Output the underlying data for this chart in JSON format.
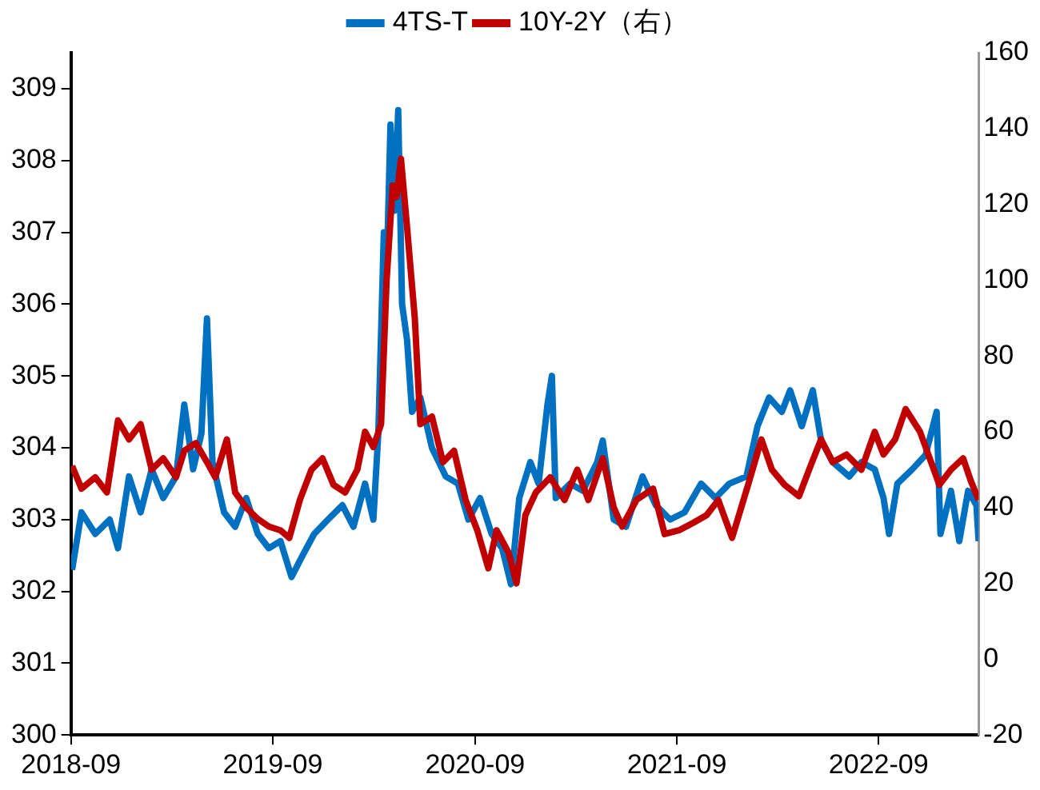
{
  "chart_data": {
    "type": "line",
    "x": [
      "2018-09-03",
      "2018-09-20",
      "2018-10-15",
      "2018-11-10",
      "2018-11-25",
      "2018-12-15",
      "2019-01-05",
      "2019-01-25",
      "2019-02-15",
      "2019-03-10",
      "2019-03-25",
      "2019-04-10",
      "2019-04-25",
      "2019-05-05",
      "2019-05-15",
      "2019-06-05",
      "2019-06-25",
      "2019-07-15",
      "2019-08-05",
      "2019-08-25",
      "2019-09-15",
      "2019-10-05",
      "2019-10-25",
      "2019-11-15",
      "2019-12-10",
      "2020-01-05",
      "2020-01-25",
      "2020-02-15",
      "2020-03-01",
      "2020-03-10",
      "2020-03-20",
      "2020-03-25",
      "2020-04-01",
      "2020-04-08",
      "2020-04-15",
      "2020-04-22",
      "2020-05-01",
      "2020-05-10",
      "2020-05-25",
      "2020-06-15",
      "2020-07-10",
      "2020-08-01",
      "2020-08-20",
      "2020-09-10",
      "2020-10-01",
      "2020-10-20",
      "2020-11-05",
      "2020-11-20",
      "2020-12-10",
      "2020-12-25",
      "2021-01-10",
      "2021-01-18",
      "2021-01-25",
      "2021-02-20",
      "2021-03-15",
      "2021-04-10",
      "2021-04-20",
      "2021-05-10",
      "2021-06-01",
      "2021-07-01",
      "2021-07-25",
      "2021-08-20",
      "2021-09-15",
      "2021-10-15",
      "2021-11-10",
      "2021-12-05",
      "2022-01-05",
      "2022-01-25",
      "2022-02-15",
      "2022-03-10",
      "2022-03-25",
      "2022-04-15",
      "2022-05-05",
      "2022-05-20",
      "2022-06-10",
      "2022-07-10",
      "2022-08-01",
      "2022-08-25",
      "2022-09-10",
      "2022-09-20",
      "2022-10-05",
      "2022-11-01",
      "2022-11-25",
      "2022-12-15",
      "2022-12-22",
      "2023-01-10",
      "2023-01-25",
      "2023-02-10",
      "2023-02-25",
      "2023-03-01"
    ],
    "series": [
      {
        "name": "4TS-T",
        "color": "#0070c0",
        "values": [
          302.3,
          303.1,
          302.8,
          303.0,
          302.6,
          303.6,
          303.1,
          303.7,
          303.3,
          303.6,
          304.6,
          303.7,
          304.2,
          305.8,
          303.8,
          303.1,
          302.9,
          303.3,
          302.8,
          302.6,
          302.7,
          302.2,
          302.5,
          302.8,
          303.0,
          303.2,
          302.9,
          303.5,
          303.0,
          304.2,
          307.0,
          306.4,
          308.5,
          307.3,
          308.7,
          306.0,
          305.5,
          304.5,
          304.7,
          304.0,
          303.6,
          303.5,
          303.0,
          303.3,
          302.8,
          302.6,
          302.1,
          303.3,
          303.8,
          303.5,
          304.6,
          305.0,
          303.3,
          303.5,
          303.4,
          303.8,
          304.1,
          303.0,
          302.9,
          303.6,
          303.2,
          303.0,
          303.1,
          303.5,
          303.3,
          303.5,
          303.6,
          304.3,
          304.7,
          304.5,
          304.8,
          304.3,
          304.8,
          304.1,
          303.8,
          303.6,
          303.8,
          303.7,
          303.3,
          302.8,
          303.5,
          303.7,
          303.9,
          304.5,
          302.8,
          303.4,
          302.7,
          303.4,
          303.2,
          302.7
        ]
      },
      {
        "name": "10Y-2Y（右）",
        "color": "#c00000",
        "axis": "y2",
        "x": [
          "2018-09-03",
          "2018-09-20",
          "2018-10-15",
          "2018-11-05",
          "2018-11-25",
          "2018-12-15",
          "2019-01-05",
          "2019-01-25",
          "2019-02-15",
          "2019-03-10",
          "2019-03-25",
          "2019-04-15",
          "2019-05-05",
          "2019-05-20",
          "2019-06-10",
          "2019-06-25",
          "2019-07-15",
          "2019-08-05",
          "2019-08-25",
          "2019-09-15",
          "2019-10-01",
          "2019-10-20",
          "2019-11-10",
          "2019-11-30",
          "2019-12-20",
          "2020-01-10",
          "2020-02-01",
          "2020-02-15",
          "2020-03-01",
          "2020-03-15",
          "2020-03-25",
          "2020-04-05",
          "2020-04-12",
          "2020-04-20",
          "2020-05-01",
          "2020-05-15",
          "2020-05-25",
          "2020-06-15",
          "2020-07-05",
          "2020-07-25",
          "2020-08-15",
          "2020-09-05",
          "2020-09-25",
          "2020-10-10",
          "2020-11-01",
          "2020-11-15",
          "2020-12-01",
          "2020-12-20",
          "2021-01-15",
          "2021-02-10",
          "2021-03-05",
          "2021-03-25",
          "2021-04-20",
          "2021-05-10",
          "2021-05-25",
          "2021-06-20",
          "2021-07-20",
          "2021-08-10",
          "2021-09-05",
          "2021-10-01",
          "2021-10-25",
          "2021-11-15",
          "2021-12-10",
          "2022-01-10",
          "2022-02-01",
          "2022-02-20",
          "2022-03-15",
          "2022-04-10",
          "2022-05-01",
          "2022-05-20",
          "2022-06-10",
          "2022-07-05",
          "2022-08-01",
          "2022-08-25",
          "2022-09-10",
          "2022-10-01",
          "2022-10-20",
          "2022-11-15",
          "2022-12-05",
          "2022-12-20",
          "2023-01-10",
          "2023-02-01",
          "2023-02-15",
          "2023-03-01"
        ],
        "values": [
          51,
          45,
          48,
          44,
          63,
          58,
          62,
          50,
          53,
          48,
          55,
          57,
          52,
          48,
          58,
          44,
          40,
          37,
          35,
          34,
          32,
          42,
          50,
          53,
          46,
          44,
          50,
          60,
          56,
          62,
          100,
          125,
          122,
          132,
          114,
          90,
          62,
          64,
          52,
          55,
          42,
          34,
          24,
          34,
          28,
          20,
          38,
          44,
          48,
          42,
          50,
          42,
          53,
          40,
          35,
          42,
          45,
          33,
          34,
          36,
          38,
          42,
          32,
          47,
          58,
          50,
          46,
          43,
          51,
          58,
          52,
          54,
          50,
          60,
          54,
          58,
          66,
          60,
          52,
          46,
          50,
          53,
          47,
          42
        ]
      }
    ],
    "xlim": [
      "2018-09",
      "2023-03"
    ],
    "xticks": [
      "2018-09",
      "2019-09",
      "2020-09",
      "2021-09",
      "2022-09"
    ],
    "ylim": [
      300,
      309.5
    ],
    "yticks": [
      300,
      301,
      302,
      303,
      304,
      305,
      306,
      307,
      308,
      309
    ],
    "y2lim": [
      -20,
      160
    ],
    "y2ticks": [
      -20,
      0,
      20,
      40,
      60,
      80,
      100,
      120,
      140,
      160
    ],
    "legend": "top",
    "grid": false,
    "marker": "none",
    "line_style": "solid"
  }
}
